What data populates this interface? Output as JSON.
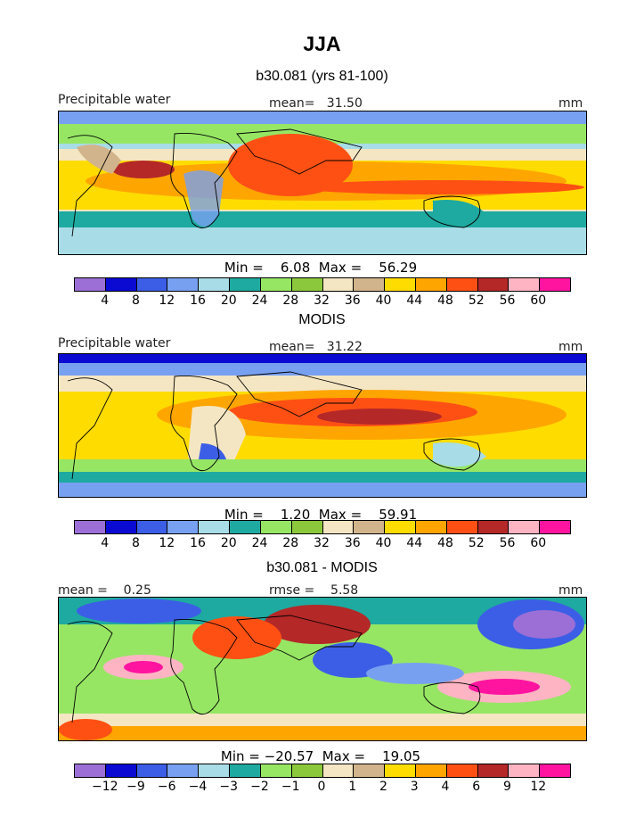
{
  "title": "JJA",
  "colorbar_palette": [
    "#9b6fd6",
    "#0a0ad2",
    "#3c5ee6",
    "#78a0f0",
    "#a8dce6",
    "#1eaaa0",
    "#96e664",
    "#8cc83c",
    "#f5e6c3",
    "#d2b48c",
    "#ffdc00",
    "#ffa500",
    "#ff5014",
    "#b42828",
    "#ffb4c3",
    "#ff14a0"
  ],
  "panels": [
    {
      "subtitle": "b30.081 (yrs 81-100)",
      "left_label": "Precipitable water",
      "center_label": "mean=   31.50",
      "right_label": "mm",
      "minmax": "Min =    6.08  Max =    56.29",
      "tick_labels": [
        "4",
        "8",
        "12",
        "16",
        "20",
        "24",
        "28",
        "32",
        "36",
        "40",
        "44",
        "48",
        "52",
        "56",
        "60"
      ]
    },
    {
      "subtitle": "MODIS",
      "left_label": "Precipitable water",
      "center_label": "mean=   31.22",
      "right_label": "mm",
      "minmax": "Min =    1.20  Max =    59.91",
      "tick_labels": [
        "4",
        "8",
        "12",
        "16",
        "20",
        "24",
        "28",
        "32",
        "36",
        "40",
        "44",
        "48",
        "52",
        "56",
        "60"
      ]
    },
    {
      "subtitle": "b30.081 - MODIS",
      "left_label": "mean =    0.25",
      "center_label": "rmse =    5.58",
      "right_label": "mm",
      "minmax": "Min = −20.57  Max =    19.05",
      "tick_labels": [
        "−12",
        "−9",
        "−6",
        "−4",
        "−3",
        "−2",
        "−1",
        "0",
        "1",
        "2",
        "3",
        "4",
        "6",
        "9",
        "12"
      ]
    }
  ],
  "chart_data": [
    {
      "type": "heatmap",
      "title": "b30.081 (yrs 81-100)",
      "variable": "Precipitable water",
      "units": "mm",
      "mean": 31.5,
      "min": 6.08,
      "max": 56.29,
      "levels": [
        4,
        8,
        12,
        16,
        20,
        24,
        28,
        32,
        36,
        40,
        44,
        48,
        52,
        56,
        60
      ]
    },
    {
      "type": "heatmap",
      "title": "MODIS",
      "variable": "Precipitable water",
      "units": "mm",
      "mean": 31.22,
      "min": 1.2,
      "max": 59.91,
      "levels": [
        4,
        8,
        12,
        16,
        20,
        24,
        28,
        32,
        36,
        40,
        44,
        48,
        52,
        56,
        60
      ]
    },
    {
      "type": "heatmap",
      "title": "b30.081 - MODIS",
      "units": "mm",
      "mean": 0.25,
      "rmse": 5.58,
      "min": -20.57,
      "max": 19.05,
      "levels": [
        -12,
        -9,
        -6,
        -4,
        -3,
        -2,
        -1,
        0,
        1,
        2,
        3,
        4,
        6,
        9,
        12
      ]
    }
  ]
}
